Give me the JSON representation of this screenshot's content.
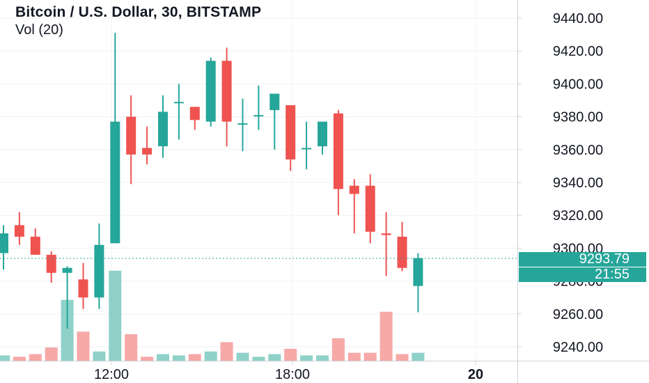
{
  "header": {
    "title": "Bitcoin / U.S. Dollar, 30, BITSTAMP",
    "volume_label": "Vol (20)"
  },
  "colors": {
    "up": "#26a69a",
    "down": "#ef5350",
    "up_volume": "#8fd1c8",
    "down_volume": "#f6a9a7",
    "grid": "#eef0f3",
    "axis_text": "#131722",
    "price_line": "#26a69a"
  },
  "chart_data": {
    "type": "candlestick",
    "y_axis": {
      "side": "right",
      "ticks": [
        "9440.00",
        "9420.00",
        "9400.00",
        "9380.00",
        "9360.00",
        "9340.00",
        "9320.00",
        "9300.00",
        "9280.00",
        "9260.00",
        "9240.00"
      ],
      "ylim": [
        9232,
        9445
      ]
    },
    "x_axis": {
      "ticks": [
        "12:00",
        "18:00",
        "20"
      ]
    },
    "candles": [
      {
        "open": 9297,
        "high": 9314,
        "low": 9287,
        "close": 9309
      },
      {
        "open": 9314,
        "high": 9322,
        "low": 9302,
        "close": 9307
      },
      {
        "open": 9307,
        "high": 9312,
        "low": 9296,
        "close": 9296
      },
      {
        "open": 9296,
        "high": 9298,
        "low": 9279,
        "close": 9285
      },
      {
        "open": 9285,
        "high": 9289,
        "low": 9251,
        "close": 9288
      },
      {
        "open": 9281,
        "high": 9291,
        "low": 9263,
        "close": 9270
      },
      {
        "open": 9270,
        "high": 9315,
        "low": 9263,
        "close": 9302
      },
      {
        "open": 9303,
        "high": 9431,
        "low": 9303,
        "close": 9377
      },
      {
        "open": 9380,
        "high": 9393,
        "low": 9339,
        "close": 9357
      },
      {
        "open": 9361,
        "high": 9374,
        "low": 9351,
        "close": 9357
      },
      {
        "open": 9362,
        "high": 9393,
        "low": 9355,
        "close": 9383
      },
      {
        "open": 9389,
        "high": 9400,
        "low": 9366,
        "close": 9389
      },
      {
        "open": 9386,
        "high": 9386,
        "low": 9372,
        "close": 9378
      },
      {
        "open": 9377,
        "high": 9416,
        "low": 9374,
        "close": 9414
      },
      {
        "open": 9414,
        "high": 9422,
        "low": 9362,
        "close": 9377
      },
      {
        "open": 9376,
        "high": 9391,
        "low": 9359,
        "close": 9376
      },
      {
        "open": 9381,
        "high": 9399,
        "low": 9372,
        "close": 9381
      },
      {
        "open": 9384,
        "high": 9394,
        "low": 9360,
        "close": 9394
      },
      {
        "open": 9387,
        "high": 9387,
        "low": 9347,
        "close": 9354
      },
      {
        "open": 9361,
        "high": 9377,
        "low": 9348,
        "close": 9361
      },
      {
        "open": 9362,
        "high": 9377,
        "low": 9357,
        "close": 9377
      },
      {
        "open": 9382,
        "high": 9384,
        "low": 9320,
        "close": 9336
      },
      {
        "open": 9338,
        "high": 9342,
        "low": 9309,
        "close": 9333
      },
      {
        "open": 9338,
        "high": 9345,
        "low": 9303,
        "close": 9310
      },
      {
        "open": 9309,
        "high": 9322,
        "low": 9283,
        "close": 9308
      },
      {
        "open": 9307,
        "high": 9316,
        "low": 9286,
        "close": 9288
      },
      {
        "open": 9277,
        "high": 9297,
        "low": 9261,
        "close": 9294
      }
    ],
    "volumes": [
      4,
      3,
      5,
      10,
      46,
      22,
      7,
      68,
      20,
      3,
      5,
      4,
      5,
      7,
      14,
      6,
      3,
      5,
      9,
      4,
      4,
      17,
      6,
      6,
      37,
      5,
      6
    ],
    "last_price": "9293.79",
    "countdown": "21:55",
    "last_price_value": 9293.79,
    "grid": true
  }
}
